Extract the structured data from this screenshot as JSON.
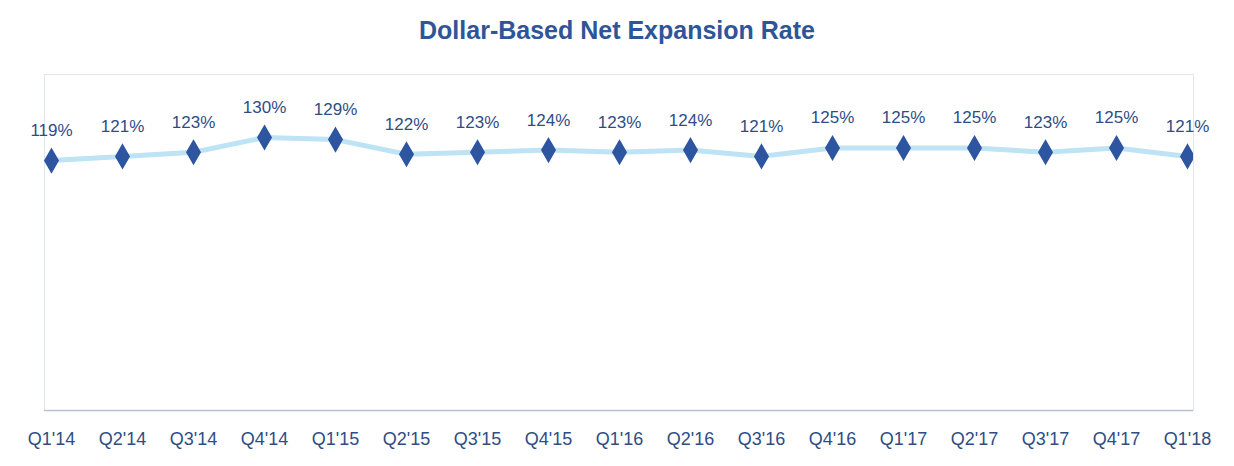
{
  "chart_data": {
    "type": "line",
    "title": "Dollar-Based Net Expansion Rate",
    "categories": [
      "Q1'14",
      "Q2'14",
      "Q3'14",
      "Q4'14",
      "Q1'15",
      "Q2'15",
      "Q3'15",
      "Q4'15",
      "Q1'16",
      "Q2'16",
      "Q3'16",
      "Q4'16",
      "Q1'17",
      "Q2'17",
      "Q3'17",
      "Q4'17",
      "Q1'18"
    ],
    "values": [
      119,
      121,
      123,
      130,
      129,
      122,
      123,
      124,
      123,
      124,
      121,
      125,
      125,
      125,
      123,
      125,
      121
    ],
    "value_labels": [
      "119%",
      "121%",
      "123%",
      "130%",
      "129%",
      "122%",
      "123%",
      "124%",
      "123%",
      "124%",
      "121%",
      "125%",
      "125%",
      "125%",
      "123%",
      "125%",
      "121%"
    ],
    "color": "#bde3f5",
    "marker": "diamond",
    "ylim": [
      0,
      160
    ],
    "tick_labels": "x",
    "data_labels": true,
    "grid": false
  }
}
